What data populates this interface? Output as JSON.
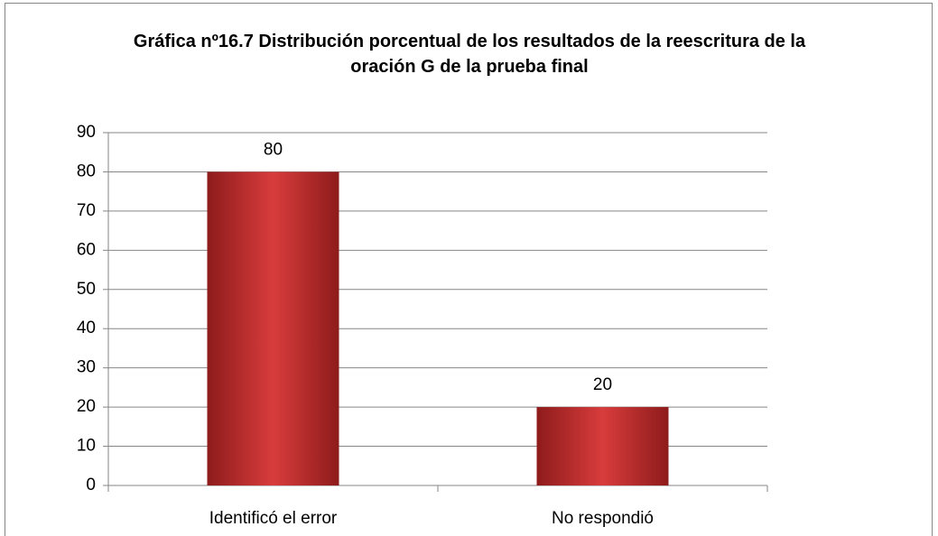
{
  "chart_data": {
    "type": "bar",
    "title": "Gráfica nº16.7 Distribución porcentual de los resultados de la reescritura de la oración G de la prueba final",
    "categories": [
      "Identificó el error",
      "No respondió"
    ],
    "values": [
      80,
      20
    ],
    "color": "#d83c3c",
    "ylim": [
      0,
      90
    ],
    "yticks": [
      0,
      10,
      20,
      30,
      40,
      50,
      60,
      70,
      80,
      90
    ],
    "grid": true
  }
}
